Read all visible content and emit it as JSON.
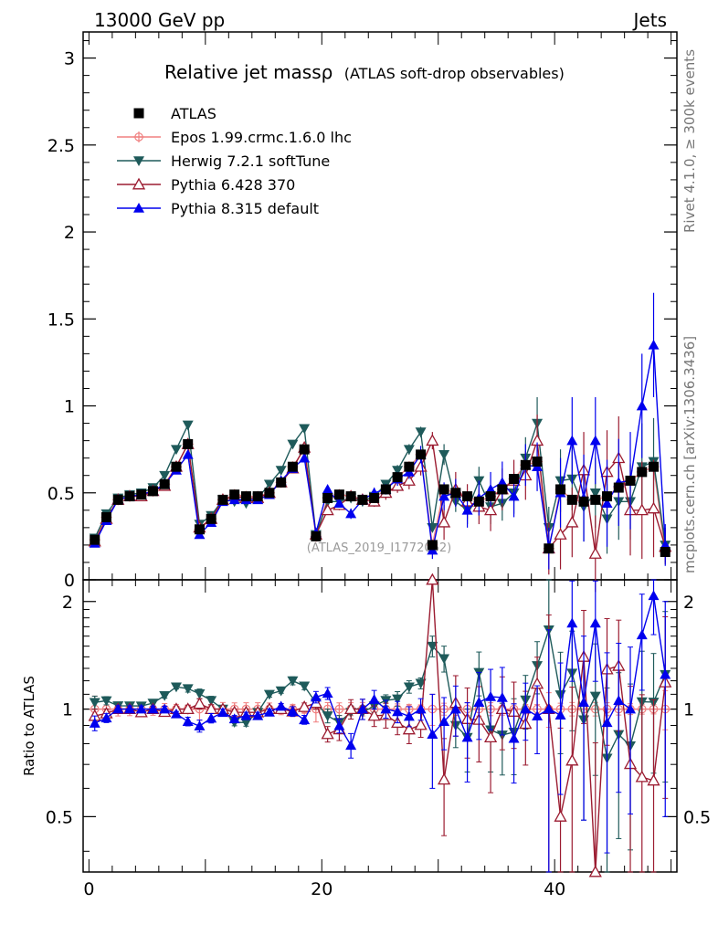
{
  "header": {
    "left": "13000 GeV pp",
    "right": "Jets"
  },
  "title": {
    "main": "Relative jet massρ",
    "sub": "(ATLAS soft-drop observables)"
  },
  "side_labels": {
    "rivet": "Rivet 4.1.0, ≥ 300k events",
    "mcplots": "mcplots.cern.ch [arXiv:1306.3436]"
  },
  "watermark": "(ATLAS_2019_I1772062)",
  "legend": [
    {
      "key": "atlas",
      "label": "ATLAS"
    },
    {
      "key": "epos",
      "label": "Epos 1.99.crmc.1.6.0 lhc"
    },
    {
      "key": "herwig",
      "label": "Herwig 7.2.1 softTune"
    },
    {
      "key": "py6",
      "label": "Pythia 6.428 370"
    },
    {
      "key": "py8",
      "label": "Pythia 8.315 default"
    }
  ],
  "colors": {
    "atlas": "#000000",
    "epos": "#f08080",
    "herwig": "#1e5a5a",
    "py6": "#9b1b30",
    "py8": "#0000ee"
  },
  "chart_data": {
    "type": "scatter",
    "x": [
      0.5,
      1.5,
      2.5,
      3.5,
      4.5,
      5.5,
      6.5,
      7.5,
      8.5,
      9.5,
      10.5,
      11.5,
      12.5,
      13.5,
      14.5,
      15.5,
      16.5,
      17.5,
      18.5,
      19.5,
      20.5,
      21.5,
      22.5,
      23.5,
      24.5,
      25.5,
      26.5,
      27.5,
      28.5,
      29.5,
      30.5,
      31.5,
      32.5,
      33.5,
      34.5,
      35.5,
      36.5,
      37.5,
      38.5,
      39.5,
      40.5,
      41.5,
      42.5,
      43.5,
      44.5,
      45.5,
      46.5,
      47.5,
      48.5,
      49.5
    ],
    "main_panel": {
      "xlim": [
        -0.5,
        50.5
      ],
      "ylim": [
        0,
        3.15
      ],
      "yticks": [
        0,
        0.5,
        1,
        1.5,
        2,
        2.5,
        3
      ],
      "ytick_labels": [
        "0",
        "0.5",
        "1",
        "1.5",
        "2",
        "2.5",
        "3"
      ]
    },
    "ratio_panel": {
      "ylabel": "Ratio to ATLAS",
      "ylim": [
        0.35,
        2.3
      ],
      "log_scale": true,
      "yticks": [
        0.5,
        1,
        2
      ],
      "ytick_labels": [
        "0.5",
        "1",
        "2"
      ],
      "xticks": [
        0,
        20,
        40
      ],
      "xtick_labels": [
        "0",
        "20",
        "40"
      ]
    },
    "series": [
      {
        "key": "atlas",
        "name": "ATLAS",
        "values": [
          0.23,
          0.36,
          0.46,
          0.48,
          0.49,
          0.51,
          0.55,
          0.65,
          0.78,
          0.29,
          0.35,
          0.46,
          0.49,
          0.48,
          0.48,
          0.5,
          0.56,
          0.65,
          0.75,
          0.25,
          0.47,
          0.49,
          0.48,
          0.46,
          0.47,
          0.52,
          0.59,
          0.65,
          0.72,
          0.2,
          0.52,
          0.5,
          0.48,
          0.45,
          0.48,
          0.52,
          0.58,
          0.66,
          0.68,
          0.18,
          0.52,
          0.46,
          0.45,
          0.46,
          0.48,
          0.53,
          0.57,
          0.62,
          0.65,
          0.16
        ],
        "errors": [
          0.02,
          0.02,
          0.02,
          0.02,
          0.02,
          0.02,
          0.02,
          0.02,
          0.02,
          0.02,
          0.02,
          0.02,
          0.02,
          0.02,
          0.02,
          0.02,
          0.02,
          0.02,
          0.02,
          0.02,
          0.02,
          0.02,
          0.02,
          0.02,
          0.02,
          0.02,
          0.02,
          0.02,
          0.02,
          0.02,
          0.02,
          0.02,
          0.02,
          0.02,
          0.02,
          0.02,
          0.02,
          0.02,
          0.02,
          0.02,
          0.02,
          0.02,
          0.02,
          0.02,
          0.02,
          0.02,
          0.02,
          0.02,
          0.02,
          0.02
        ]
      },
      {
        "key": "epos",
        "name": "Epos 1.99.crmc.1.6.0 lhc",
        "values": [
          0.23,
          0.36,
          0.46,
          0.48,
          0.49,
          0.51,
          0.55,
          0.65,
          0.78,
          0.29,
          0.35,
          0.46,
          0.49,
          0.48,
          0.48,
          0.5,
          0.56,
          0.65,
          0.75,
          0.25,
          0.47,
          0.49,
          0.48,
          0.46,
          0.47,
          0.52,
          0.59,
          0.65,
          0.72,
          0.2,
          0.52,
          0.5,
          0.48,
          0.45,
          0.48,
          0.52,
          0.58,
          0.66,
          0.68,
          0.18,
          0.52,
          0.46,
          0.45,
          0.46,
          0.48,
          0.53,
          0.57,
          0.62,
          0.65,
          0.16
        ],
        "errors": [
          0.02,
          0.02,
          0.02,
          0.02,
          0.02,
          0.02,
          0.02,
          0.02,
          0.02,
          0.02,
          0.02,
          0.02,
          0.02,
          0.02,
          0.02,
          0.02,
          0.02,
          0.02,
          0.02,
          0.02,
          0.02,
          0.02,
          0.02,
          0.02,
          0.02,
          0.02,
          0.02,
          0.02,
          0.02,
          0.02,
          0.02,
          0.02,
          0.02,
          0.02,
          0.02,
          0.02,
          0.02,
          0.02,
          0.02,
          0.02,
          0.02,
          0.02,
          0.02,
          0.02,
          0.02,
          0.02,
          0.02,
          0.02,
          0.02,
          0.02
        ]
      },
      {
        "key": "herwig",
        "name": "Herwig 7.2.1 softTune",
        "values": [
          0.24,
          0.38,
          0.47,
          0.49,
          0.5,
          0.53,
          0.6,
          0.75,
          0.89,
          0.32,
          0.37,
          0.46,
          0.45,
          0.44,
          0.47,
          0.55,
          0.63,
          0.78,
          0.87,
          0.26,
          0.45,
          0.45,
          0.47,
          0.45,
          0.48,
          0.55,
          0.63,
          0.75,
          0.85,
          0.3,
          0.72,
          0.45,
          0.4,
          0.57,
          0.42,
          0.44,
          0.5,
          0.7,
          0.9,
          0.3,
          0.57,
          0.58,
          0.42,
          0.5,
          0.35,
          0.45,
          0.45,
          0.65,
          0.68,
          0.2
        ],
        "errors": [
          0.01,
          0.01,
          0.01,
          0.01,
          0.01,
          0.01,
          0.01,
          0.01,
          0.02,
          0.01,
          0.01,
          0.01,
          0.01,
          0.01,
          0.01,
          0.01,
          0.01,
          0.02,
          0.02,
          0.01,
          0.02,
          0.02,
          0.02,
          0.02,
          0.02,
          0.02,
          0.03,
          0.03,
          0.03,
          0.02,
          0.06,
          0.06,
          0.08,
          0.08,
          0.1,
          0.1,
          0.12,
          0.12,
          0.15,
          0.12,
          0.18,
          0.18,
          0.2,
          0.2,
          0.2,
          0.22,
          0.22,
          0.25,
          0.25,
          0.1
        ]
      },
      {
        "key": "py6",
        "name": "Pythia 6.428 370",
        "values": [
          0.22,
          0.35,
          0.46,
          0.48,
          0.48,
          0.51,
          0.54,
          0.65,
          0.78,
          0.3,
          0.35,
          0.46,
          0.48,
          0.47,
          0.47,
          0.5,
          0.56,
          0.64,
          0.76,
          0.26,
          0.4,
          0.43,
          0.48,
          0.46,
          0.45,
          0.5,
          0.54,
          0.57,
          0.65,
          0.8,
          0.33,
          0.52,
          0.45,
          0.42,
          0.4,
          0.52,
          0.57,
          0.6,
          0.8,
          0.18,
          0.26,
          0.33,
          0.63,
          0.15,
          0.62,
          0.7,
          0.4,
          0.4,
          0.41,
          0.19
        ],
        "errors": [
          0.01,
          0.01,
          0.01,
          0.01,
          0.01,
          0.01,
          0.01,
          0.01,
          0.02,
          0.01,
          0.01,
          0.01,
          0.01,
          0.01,
          0.01,
          0.01,
          0.01,
          0.02,
          0.02,
          0.01,
          0.02,
          0.03,
          0.03,
          0.03,
          0.03,
          0.04,
          0.04,
          0.05,
          0.05,
          0.05,
          0.1,
          0.1,
          0.1,
          0.1,
          0.12,
          0.12,
          0.12,
          0.14,
          0.15,
          0.15,
          0.2,
          0.2,
          0.22,
          0.22,
          0.24,
          0.24,
          0.26,
          0.28,
          0.28,
          0.1
        ]
      },
      {
        "key": "py8",
        "name": "Pythia 8.315 default",
        "values": [
          0.21,
          0.34,
          0.46,
          0.48,
          0.49,
          0.51,
          0.55,
          0.63,
          0.72,
          0.26,
          0.33,
          0.45,
          0.46,
          0.46,
          0.46,
          0.49,
          0.57,
          0.64,
          0.7,
          0.27,
          0.52,
          0.44,
          0.38,
          0.46,
          0.5,
          0.52,
          0.58,
          0.62,
          0.72,
          0.17,
          0.48,
          0.5,
          0.4,
          0.47,
          0.52,
          0.56,
          0.48,
          0.66,
          0.65,
          0.18,
          0.5,
          0.8,
          0.47,
          0.8,
          0.44,
          0.56,
          0.57,
          1.0,
          1.35,
          0.2
        ],
        "errors": [
          0.01,
          0.01,
          0.01,
          0.01,
          0.01,
          0.01,
          0.01,
          0.01,
          0.02,
          0.01,
          0.01,
          0.01,
          0.01,
          0.01,
          0.01,
          0.01,
          0.01,
          0.02,
          0.02,
          0.01,
          0.02,
          0.02,
          0.03,
          0.03,
          0.03,
          0.03,
          0.04,
          0.04,
          0.05,
          0.05,
          0.08,
          0.08,
          0.1,
          0.1,
          0.1,
          0.12,
          0.12,
          0.12,
          0.14,
          0.12,
          0.2,
          0.25,
          0.25,
          0.25,
          0.25,
          0.25,
          0.28,
          0.3,
          0.3,
          0.12
        ]
      }
    ]
  }
}
